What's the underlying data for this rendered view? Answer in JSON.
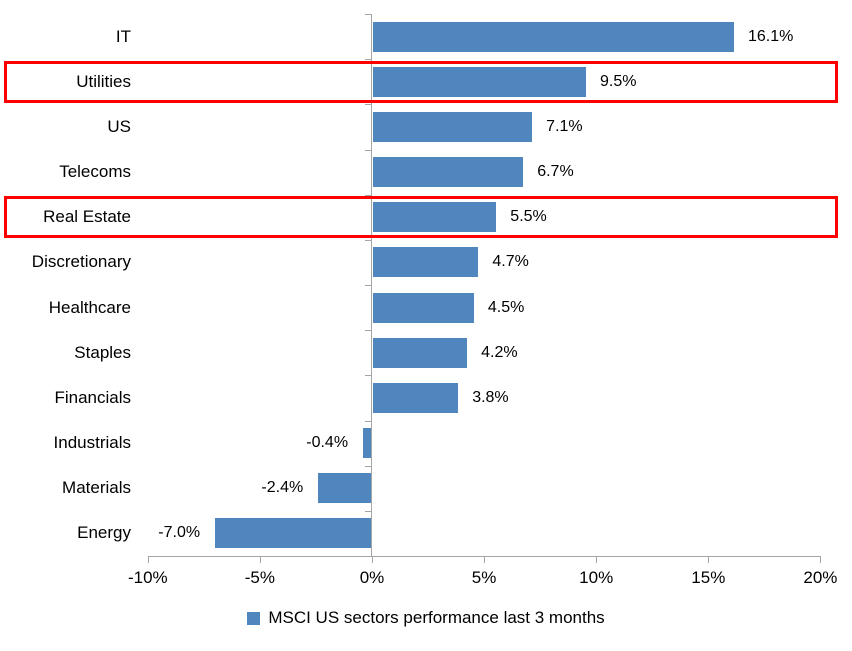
{
  "chart_data": {
    "type": "bar",
    "orientation": "horizontal",
    "categories": [
      "IT",
      "Utilities",
      "US",
      "Telecoms",
      "Real Estate",
      "Discretionary",
      "Healthcare",
      "Staples",
      "Financials",
      "Industrials",
      "Materials",
      "Energy"
    ],
    "values": [
      16.1,
      9.5,
      7.1,
      6.7,
      5.5,
      4.7,
      4.5,
      4.2,
      3.8,
      -0.4,
      -2.4,
      -7.0
    ],
    "data_labels": [
      "16.1%",
      "9.5%",
      "7.1%",
      "6.7%",
      "5.5%",
      "4.7%",
      "4.5%",
      "4.2%",
      "3.8%",
      "-0.4%",
      "-2.4%",
      "-7.0%"
    ],
    "x_tick_values": [
      -10,
      -5,
      0,
      5,
      10,
      15,
      20
    ],
    "x_tick_labels": [
      "-10%",
      "-5%",
      "0%",
      "5%",
      "10%",
      "15%",
      "20%"
    ],
    "xlim": [
      -10,
      20
    ],
    "grid": "off",
    "legend": "MSCI US sectors performance last 3 months",
    "legend_position": "bottom-center",
    "highlighted_categories": [
      "Utilities",
      "Real Estate"
    ],
    "highlight_indices": [
      1,
      4
    ],
    "colors": {
      "bar": "#4f86be",
      "highlight_box": "#ff0000",
      "axis": "#a6a6a6",
      "text": "#000000",
      "background": "#ffffff"
    }
  }
}
